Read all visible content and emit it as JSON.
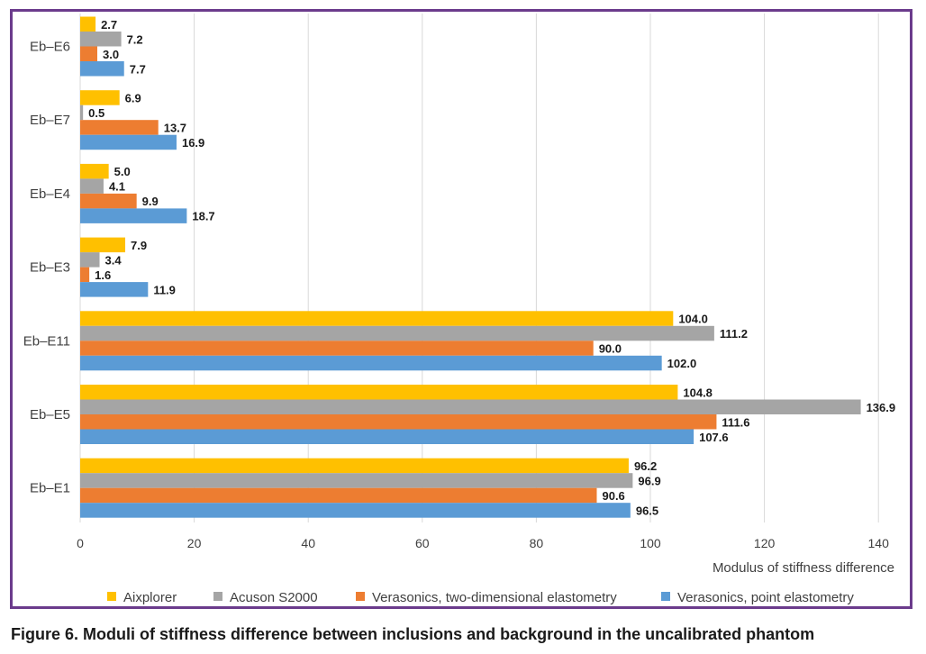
{
  "chart_data": {
    "type": "bar",
    "orientation": "horizontal",
    "categories": [
      "Eb–E6",
      "Eb–E7",
      "Eb–E4",
      "Eb–E3",
      "Eb–E11",
      "Eb–E5",
      "Eb–E1"
    ],
    "series": [
      {
        "name": "Aixplorer",
        "color": "#ffc000",
        "values": [
          2.7,
          6.9,
          5.0,
          7.9,
          104.0,
          104.8,
          96.2
        ],
        "labels": [
          "2.7",
          "6.9",
          "5.0",
          "7.9",
          "104.0",
          "104.8",
          "96.2"
        ]
      },
      {
        "name": "Acuson S2000",
        "color": "#a5a5a5",
        "values": [
          7.2,
          0.5,
          4.1,
          3.4,
          111.2,
          136.9,
          96.9
        ],
        "labels": [
          "7.2",
          "0.5",
          "4.1",
          "3.4",
          "111.2",
          "136.9",
          "96.9"
        ]
      },
      {
        "name": "Verasonics, two-dimensional elastometry",
        "color": "#ed7d31",
        "values": [
          3.0,
          13.7,
          9.9,
          1.6,
          90.0,
          111.6,
          90.6
        ],
        "labels": [
          "3.0",
          "13.7",
          "9.9",
          "1.6",
          "90.0",
          "111.6",
          "90.6"
        ]
      },
      {
        "name": "Verasonics, point elastometry",
        "color": "#5b9bd5",
        "values": [
          7.7,
          16.9,
          18.7,
          11.9,
          102.0,
          107.6,
          96.5
        ],
        "labels": [
          "7.7",
          "16.9",
          "18.7",
          "11.9",
          "102.0",
          "107.6",
          "96.5"
        ]
      }
    ],
    "x_ticks": [
      "0",
      "20",
      "40",
      "60",
      "80",
      "100",
      "120",
      "140"
    ],
    "xlim": [
      0,
      140
    ],
    "xlabel": "Modulus of stiffness difference",
    "ylabel": "",
    "grid": "vertical",
    "legend_position": "bottom"
  },
  "caption": "Figure 6. Moduli of stiffness difference between inclusions and background in the uncalibrated phantom",
  "colors": {
    "frame": "#6b3b8c",
    "grid": "#d9d9d9"
  }
}
